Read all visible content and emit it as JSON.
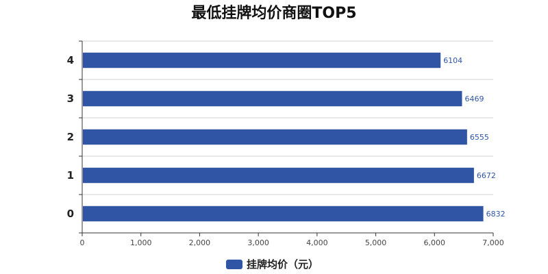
{
  "chart_data": {
    "type": "bar",
    "orientation": "horizontal",
    "title": "最低挂牌均价商圈TOP5",
    "categories": [
      "0",
      "1",
      "2",
      "3",
      "4"
    ],
    "series": [
      {
        "name": "挂牌均价（元）",
        "values": [
          6832,
          6672,
          6555,
          6469,
          6104
        ],
        "color": "#2f55a4"
      }
    ],
    "xlim": [
      0,
      7000
    ],
    "x_ticks": [
      "0",
      "1,000",
      "2,000",
      "3,000",
      "4,000",
      "5,000",
      "6,000",
      "7,000"
    ],
    "grid": true,
    "legend_position": "bottom"
  }
}
